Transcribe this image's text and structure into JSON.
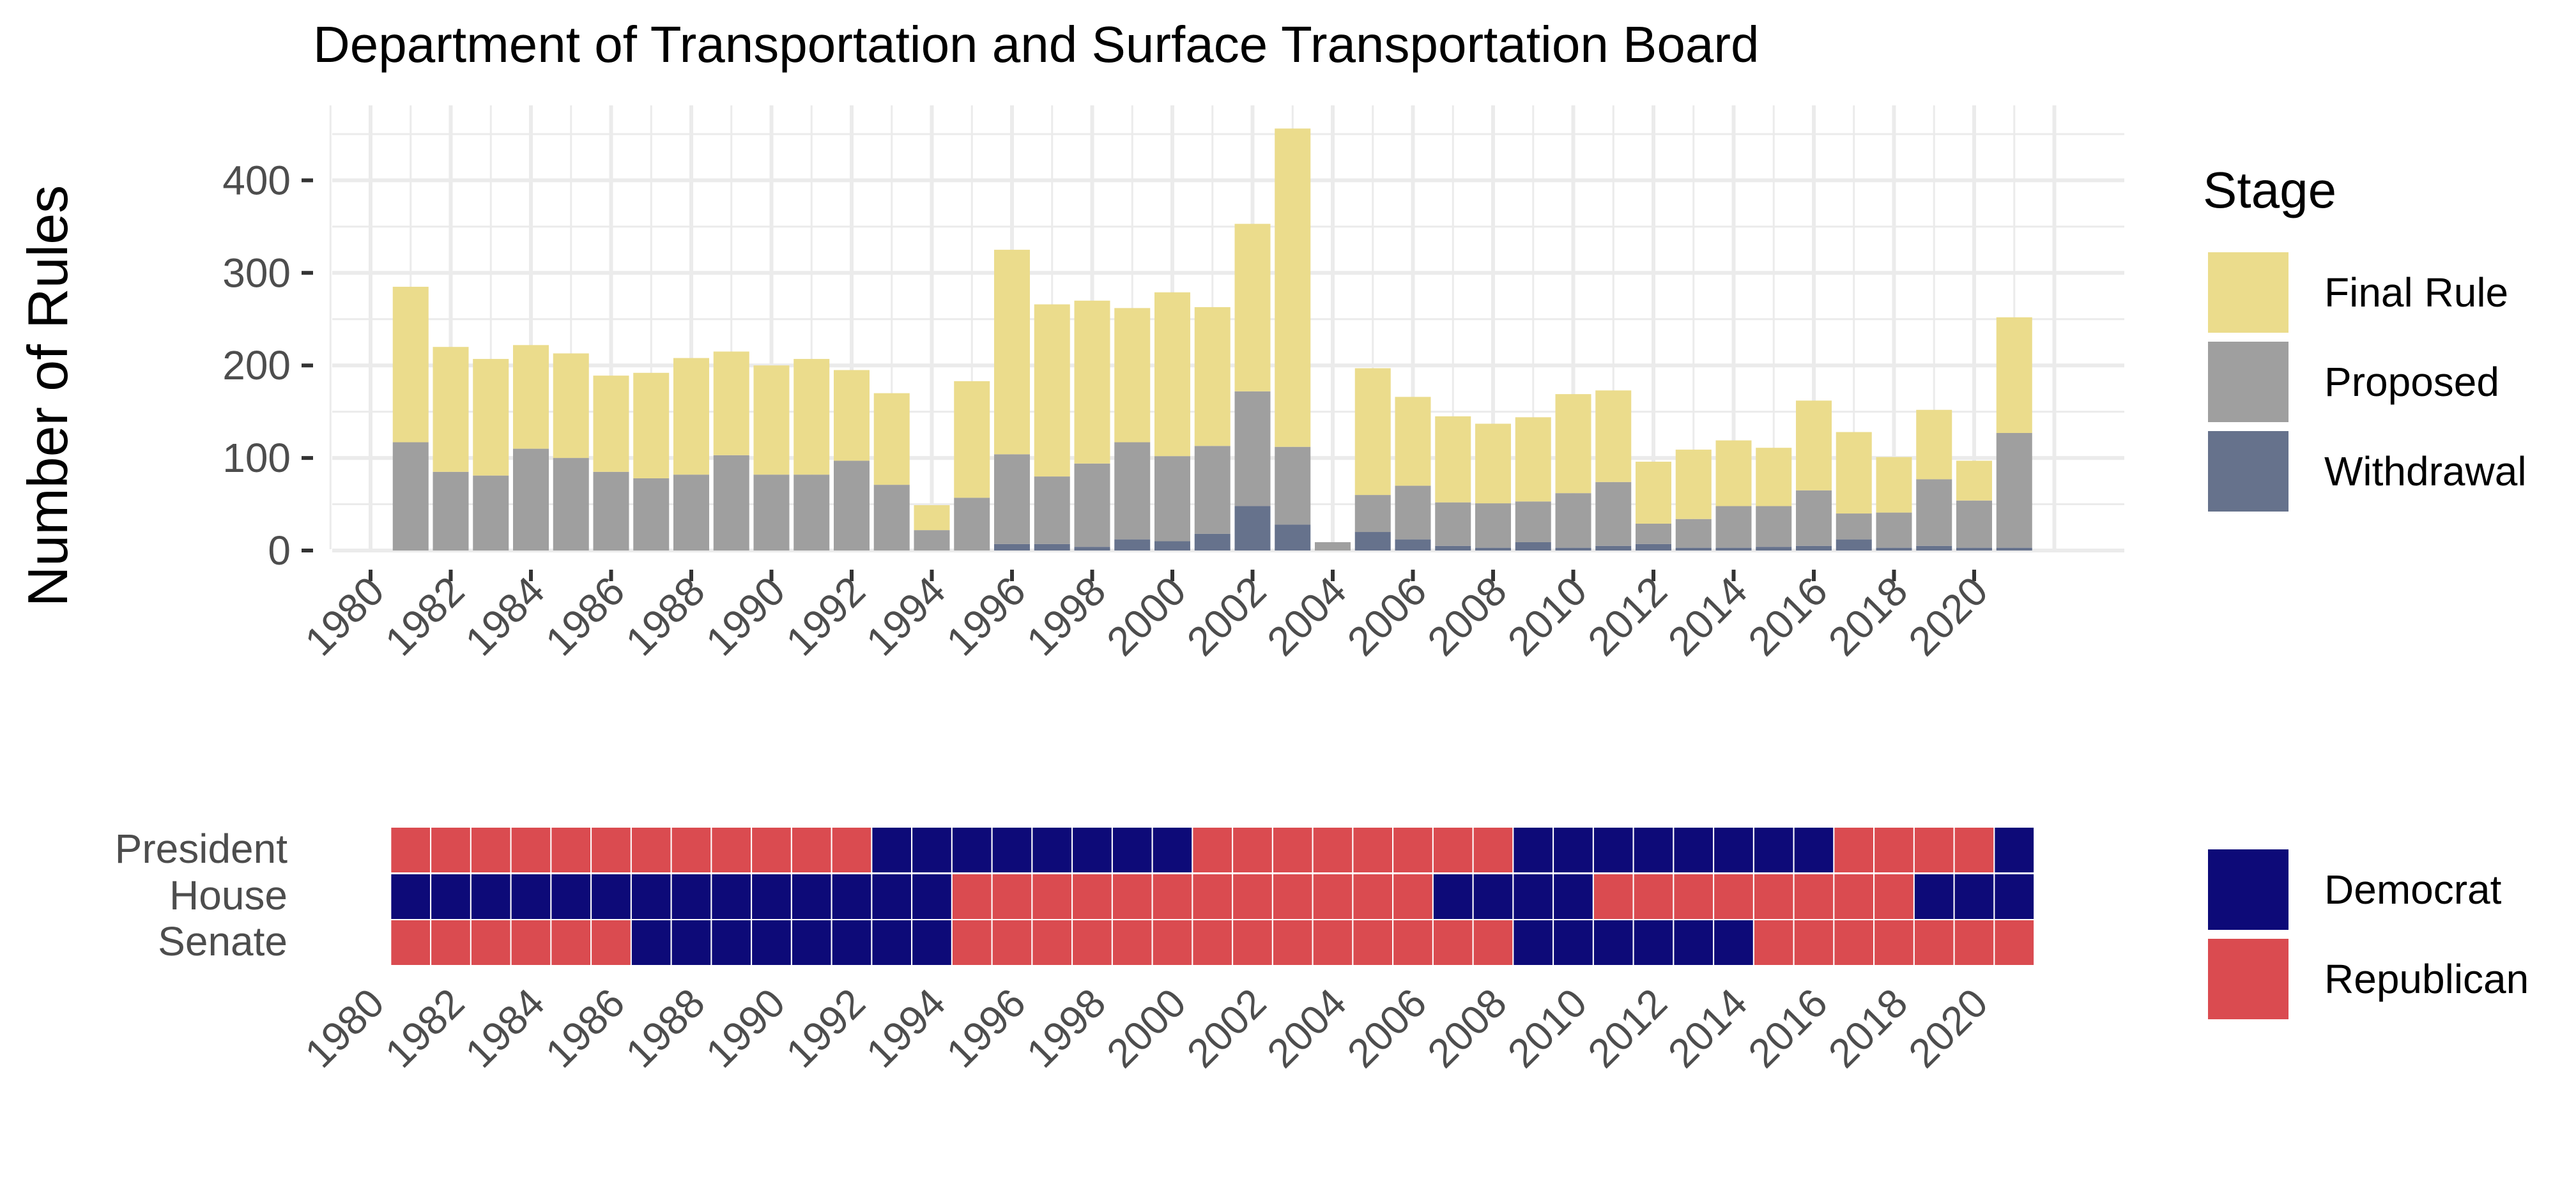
{
  "chart_data": [
    {
      "type": "bar",
      "stacked": true,
      "title": "Department of Transportation and Surface Transportation Board",
      "xlabel": "",
      "ylabel": "Number of Rules",
      "ylim": [
        0,
        460
      ],
      "yticks": [
        "0",
        "100",
        "200",
        "300",
        "400"
      ],
      "xticks": [
        "1980",
        "1982",
        "1984",
        "1986",
        "1988",
        "1990",
        "1992",
        "1994",
        "1996",
        "1998",
        "2000",
        "2002",
        "2004",
        "2006",
        "2008",
        "2010",
        "2012",
        "2014",
        "2016",
        "2018",
        "2020"
      ],
      "grid": true,
      "legend": {
        "title": "Stage",
        "position": "right"
      },
      "x": [
        1981,
        1982,
        1983,
        1984,
        1985,
        1986,
        1987,
        1988,
        1989,
        1990,
        1991,
        1992,
        1993,
        1994,
        1995,
        1996,
        1997,
        1998,
        1999,
        2000,
        2001,
        2002,
        2003,
        2004,
        2005,
        2006,
        2007,
        2008,
        2009,
        2010,
        2011,
        2012,
        2013,
        2014,
        2015,
        2016,
        2017,
        2018,
        2019,
        2020,
        2021
      ],
      "series": [
        {
          "name": "Withdrawal",
          "color": "#66728c",
          "values": [
            0,
            0,
            0,
            0,
            0,
            0,
            0,
            0,
            0,
            0,
            0,
            0,
            0,
            0,
            0,
            7,
            7,
            4,
            12,
            10,
            18,
            48,
            28,
            0,
            20,
            12,
            5,
            3,
            9,
            3,
            5,
            7,
            3,
            3,
            4,
            5,
            12,
            3,
            5,
            3,
            3
          ]
        },
        {
          "name": "Proposed",
          "color": "#9f9f9f",
          "values": [
            117,
            85,
            81,
            110,
            100,
            85,
            78,
            82,
            103,
            82,
            82,
            97,
            71,
            22,
            57,
            97,
            73,
            90,
            105,
            92,
            95,
            124,
            84,
            9,
            40,
            58,
            47,
            48,
            44,
            59,
            69,
            22,
            31,
            45,
            44,
            60,
            28,
            38,
            72,
            51,
            124
          ]
        },
        {
          "name": "Final Rule",
          "color": "#ebdc8c",
          "values": [
            168,
            135,
            126,
            112,
            113,
            104,
            114,
            126,
            112,
            118,
            125,
            98,
            99,
            27,
            126,
            221,
            186,
            176,
            145,
            177,
            150,
            181,
            344,
            0,
            137,
            96,
            93,
            86,
            91,
            107,
            99,
            67,
            75,
            71,
            63,
            97,
            88,
            60,
            75,
            43,
            125
          ]
        }
      ]
    },
    {
      "type": "heatmap",
      "rows": [
        "President",
        "House",
        "Senate"
      ],
      "xticks": [
        "1980",
        "1982",
        "1984",
        "1986",
        "1988",
        "1990",
        "1992",
        "1994",
        "1996",
        "1998",
        "2000",
        "2002",
        "2004",
        "2006",
        "2008",
        "2010",
        "2012",
        "2014",
        "2016",
        "2018",
        "2020"
      ],
      "years_start": 1981,
      "years_end": 2021,
      "legend": {
        "position": "right",
        "entries": [
          {
            "key": "D",
            "label": "Democrat",
            "color": "#0d0a78"
          },
          {
            "key": "R",
            "label": "Republican",
            "color": "#da4b50"
          }
        ]
      },
      "values": {
        "President": "RRRRRRRRRRRRDDDDDDDDRRRRRRRRDDDDDDDDRRRRD",
        "House": "DDDDDDDDDDDDDDRRRRRRRRRRRRDDDDRRRRRRRRDDD",
        "Senate": "RRRRRRDDDDDDDDRRRRRRRRRRRRRRDDDDDDRRRRRRR"
      }
    }
  ]
}
